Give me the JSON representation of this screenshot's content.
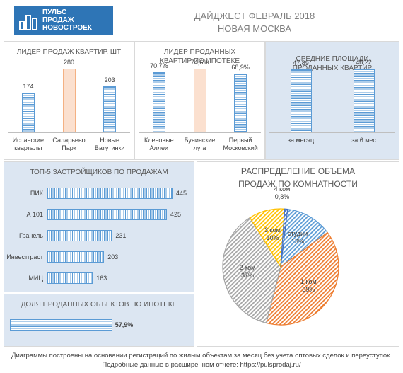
{
  "header": {
    "logo": [
      "ПУЛЬС",
      "ПРОДАЖ",
      "НОВОСТРОЕК"
    ],
    "title": "ДАЙДЖЕСТ ФЕВРАЛЬ 2018",
    "subtitle": "НОВАЯ МОСКВА"
  },
  "chart_data": [
    {
      "type": "bar",
      "title": "ЛИДЕР ПРОДАЖ  КВАРТИР, ШТ",
      "categories": [
        "Испанские кварталы",
        "Саларьево Парк",
        "Новые Ватутинки"
      ],
      "values": [
        174,
        280,
        203
      ],
      "colors": [
        "#5b9bd5",
        "#f4b183",
        "#5b9bd5"
      ]
    },
    {
      "type": "bar",
      "title": "ЛИДЕР ПРОДАННЫХ КВАРТИР ПО ИПОТЕКЕ",
      "categories": [
        "Кленовые Аллеи",
        "Бунинские луга",
        "Первый Московский"
      ],
      "values": [
        70.7,
        74.6,
        68.9
      ],
      "value_labels": [
        "70,7%",
        "74,6%",
        "68,9%"
      ],
      "colors": [
        "#5b9bd5",
        "#f4b183",
        "#5b9bd5"
      ]
    },
    {
      "type": "bar",
      "title": "СРЕДНИЕ ПЛОЩАДИ ПРОДАННЫХ КВАРТИР",
      "categories": [
        "за месяц",
        "за 6 мес"
      ],
      "values": [
        47.89,
        48.22
      ],
      "value_labels": [
        "47,89",
        "48,22"
      ],
      "colors": [
        "#5b9bd5",
        "#5b9bd5"
      ]
    },
    {
      "type": "hbar",
      "title": "ТОП-5 ЗАСТРОЙЩИКОВ ПО ПРОДАЖАМ",
      "categories": [
        "ПИК",
        "А 101",
        "Гранель",
        "Инвестграст",
        "МИЦ"
      ],
      "values": [
        445,
        425,
        231,
        203,
        163
      ],
      "color": "#5b9bd5"
    },
    {
      "type": "share",
      "title": "ДОЛЯ ПРОДАННЫХ ОБЪЕКТОВ ПО ИПОТЕКЕ",
      "values": [
        57.9
      ],
      "value_labels": [
        "57,9%"
      ],
      "xlim": [
        0,
        100
      ],
      "color": "#5b9bd5"
    },
    {
      "type": "pie",
      "title": "РАСПРЕДЕЛЕНИЕ ОБЪЕМА ПРОДАЖ ПО КОМНАТНОСТИ",
      "categories": [
        "студии",
        "1 ком",
        "2 ком",
        "3 ком",
        "4 ком"
      ],
      "values": [
        13,
        39,
        37,
        10,
        0.8
      ],
      "value_labels": [
        "13%",
        "39%",
        "37%",
        "10%",
        "0,8%"
      ],
      "colors": [
        "#5b9bd5",
        "#ed7d31",
        "#a5a5a5",
        "#ffc000",
        "#4472c4"
      ]
    }
  ],
  "footer": {
    "lines": [
      "Диаграммы построены на основании регистраций по жилым объектам за месяц без учета оптовых сделок и переуступок.",
      "Подробные данные в расширенном отчете: https://pulsprodaj.ru/"
    ]
  }
}
